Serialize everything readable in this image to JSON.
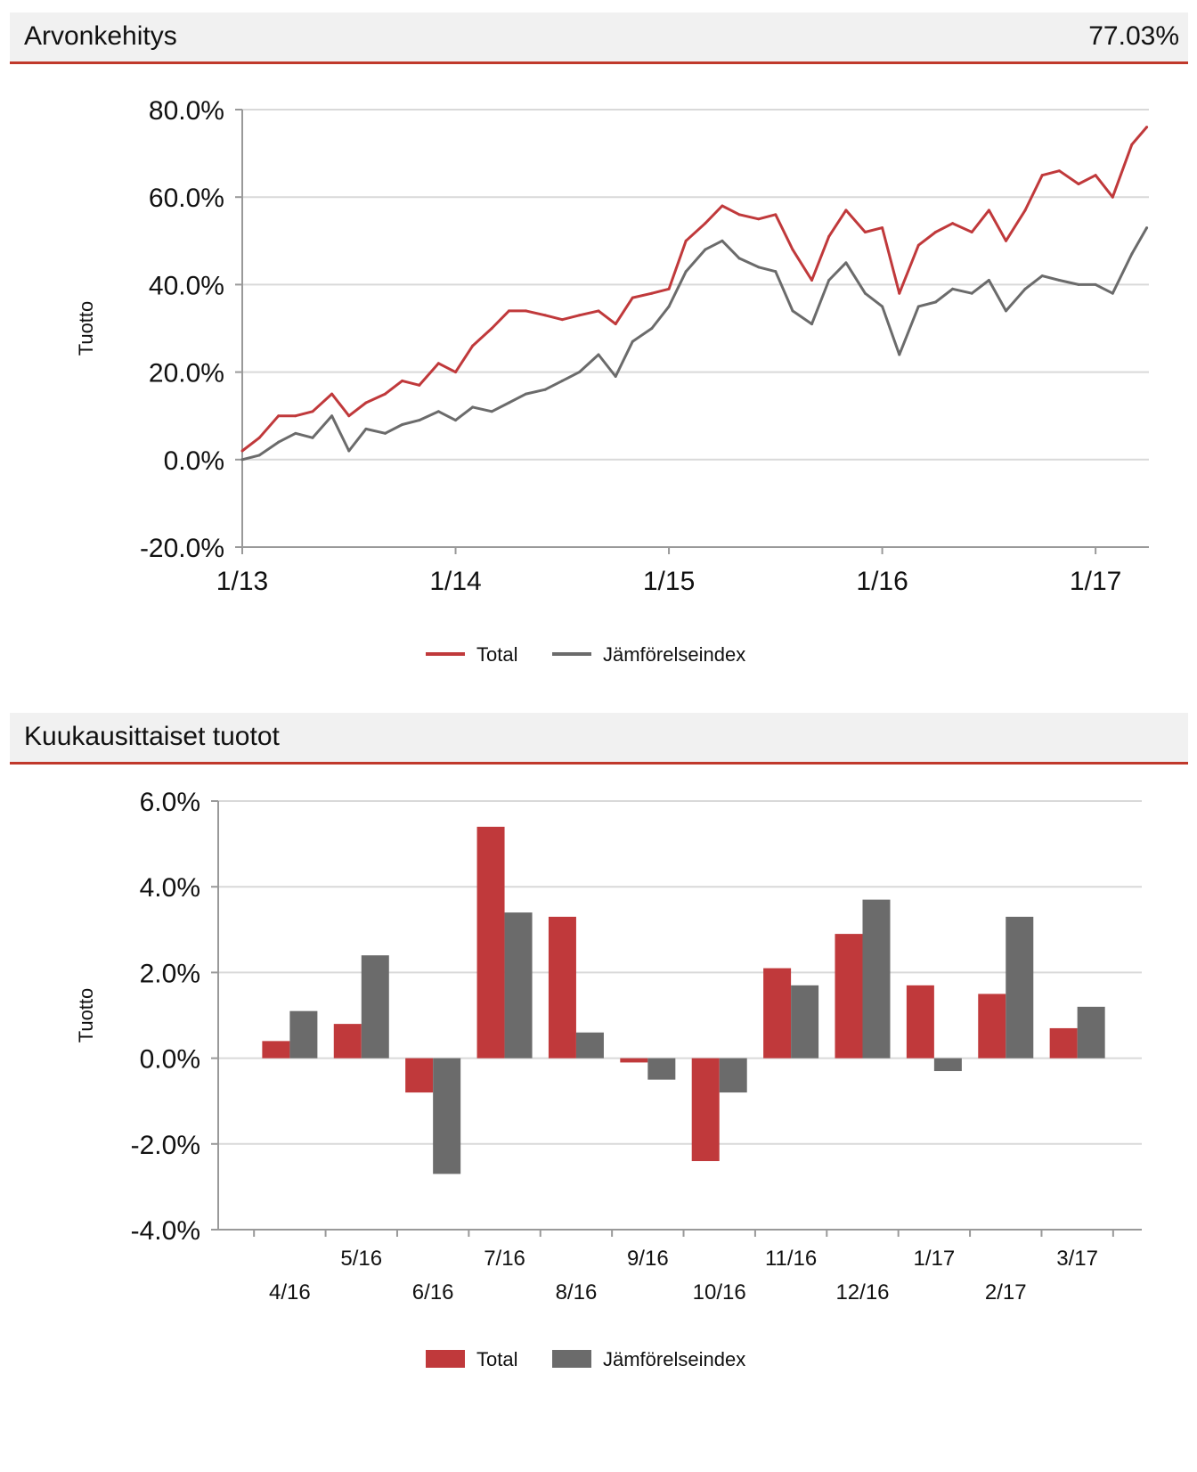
{
  "panel1": {
    "title": "Arvonkehitys",
    "value": "77.03%"
  },
  "panel2": {
    "title": "Kuukausittaiset tuotot"
  },
  "colors": {
    "total": "#c0393b",
    "index": "#6b6b6b",
    "accent": "#c0392b"
  },
  "chart_data": [
    {
      "type": "line",
      "title": "Arvonkehitys",
      "ylabel": "Tuotto",
      "ylim": [
        -20,
        80
      ],
      "yticks": [
        "80.0%",
        "60.0%",
        "40.0%",
        "20.0%",
        "0.0%",
        "-20.0%"
      ],
      "ytick_values": [
        80,
        60,
        40,
        20,
        0,
        -20
      ],
      "xticks": [
        "1/13",
        "1/14",
        "1/15",
        "1/16",
        "1/17"
      ],
      "xlim": [
        2013.0,
        2017.25
      ],
      "legend": [
        "Total",
        "Jämförelseindex"
      ],
      "series": [
        {
          "name": "Total",
          "x": [
            2013.0,
            2013.08,
            2013.17,
            2013.25,
            2013.33,
            2013.42,
            2013.5,
            2013.58,
            2013.67,
            2013.75,
            2013.83,
            2013.92,
            2014.0,
            2014.08,
            2014.17,
            2014.25,
            2014.33,
            2014.42,
            2014.5,
            2014.58,
            2014.67,
            2014.75,
            2014.83,
            2014.92,
            2015.0,
            2015.08,
            2015.17,
            2015.25,
            2015.33,
            2015.42,
            2015.5,
            2015.58,
            2015.67,
            2015.75,
            2015.83,
            2015.92,
            2016.0,
            2016.08,
            2016.17,
            2016.25,
            2016.33,
            2016.42,
            2016.5,
            2016.58,
            2016.67,
            2016.75,
            2016.83,
            2016.92,
            2017.0,
            2017.08,
            2017.17,
            2017.24
          ],
          "values": [
            2,
            5,
            10,
            10,
            11,
            15,
            10,
            13,
            15,
            18,
            17,
            22,
            20,
            26,
            30,
            34,
            34,
            33,
            32,
            33,
            34,
            31,
            37,
            38,
            39,
            50,
            54,
            58,
            56,
            55,
            56,
            48,
            41,
            51,
            57,
            52,
            53,
            38,
            49,
            52,
            54,
            52,
            57,
            50,
            57,
            65,
            66,
            63,
            65,
            60,
            72,
            76
          ]
        },
        {
          "name": "Jämförelseindex",
          "x": [
            2013.0,
            2013.08,
            2013.17,
            2013.25,
            2013.33,
            2013.42,
            2013.5,
            2013.58,
            2013.67,
            2013.75,
            2013.83,
            2013.92,
            2014.0,
            2014.08,
            2014.17,
            2014.25,
            2014.33,
            2014.42,
            2014.5,
            2014.58,
            2014.67,
            2014.75,
            2014.83,
            2014.92,
            2015.0,
            2015.08,
            2015.17,
            2015.25,
            2015.33,
            2015.42,
            2015.5,
            2015.58,
            2015.67,
            2015.75,
            2015.83,
            2015.92,
            2016.0,
            2016.08,
            2016.17,
            2016.25,
            2016.33,
            2016.42,
            2016.5,
            2016.58,
            2016.67,
            2016.75,
            2016.83,
            2016.92,
            2017.0,
            2017.08,
            2017.17,
            2017.24
          ],
          "values": [
            0,
            1,
            4,
            6,
            5,
            10,
            2,
            7,
            6,
            8,
            9,
            11,
            9,
            12,
            11,
            13,
            15,
            16,
            18,
            20,
            24,
            19,
            27,
            30,
            35,
            43,
            48,
            50,
            46,
            44,
            43,
            34,
            31,
            41,
            45,
            38,
            35,
            24,
            35,
            36,
            39,
            38,
            41,
            34,
            39,
            42,
            41,
            40,
            40,
            38,
            47,
            53
          ]
        }
      ]
    },
    {
      "type": "bar",
      "title": "Kuukausittaiset tuotot",
      "ylabel": "Tuotto",
      "ylim": [
        -4,
        6
      ],
      "yticks": [
        "6.0%",
        "4.0%",
        "2.0%",
        "0.0%",
        "-2.0%",
        "-4.0%"
      ],
      "ytick_values": [
        6,
        4,
        2,
        0,
        -2,
        -4
      ],
      "categories": [
        "4/16",
        "5/16",
        "6/16",
        "7/16",
        "8/16",
        "9/16",
        "10/16",
        "11/16",
        "12/16",
        "1/17",
        "2/17",
        "3/17"
      ],
      "legend": [
        "Total",
        "Jämförelseindex"
      ],
      "series": [
        {
          "name": "Total",
          "values": [
            0.4,
            0.8,
            -0.8,
            5.4,
            3.3,
            -0.1,
            -2.4,
            2.1,
            2.9,
            1.7,
            1.5,
            0.7
          ]
        },
        {
          "name": "Jämförelseindex",
          "values": [
            1.1,
            2.4,
            -2.7,
            3.4,
            0.6,
            -0.5,
            -0.8,
            1.7,
            3.7,
            -0.3,
            3.3,
            1.2
          ]
        }
      ]
    }
  ]
}
